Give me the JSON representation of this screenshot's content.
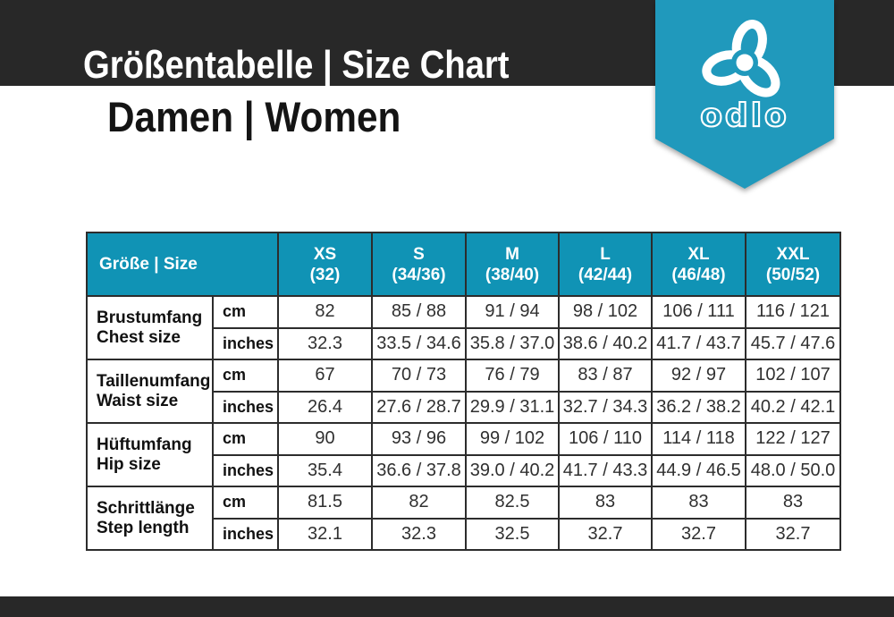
{
  "colors": {
    "band": "#282828",
    "teal": "#1093b5",
    "ribbon": "#2099bc"
  },
  "header": {
    "title": "Größentabelle | Size Chart",
    "subtitle": "Damen | Women"
  },
  "brand": {
    "wordmark": "odlo"
  },
  "table": {
    "corner_label": "Größe | Size",
    "units": [
      "cm",
      "inches"
    ],
    "sizes": [
      {
        "name": "XS",
        "range": "(32)"
      },
      {
        "name": "S",
        "range": "(34/36)"
      },
      {
        "name": "M",
        "range": "(38/40)"
      },
      {
        "name": "L",
        "range": "(42/44)"
      },
      {
        "name": "XL",
        "range": "(46/48)"
      },
      {
        "name": "XXL",
        "range": "(50/52)"
      }
    ],
    "rows": [
      {
        "label_de": "Brustumfang",
        "label_en": "Chest size",
        "values": {
          "cm": [
            "82",
            "85 / 88",
            "91 / 94",
            "98 / 102",
            "106 / 111",
            "116 / 121"
          ],
          "inches": [
            "32.3",
            "33.5 / 34.6",
            "35.8 / 37.0",
            "38.6 / 40.2",
            "41.7 / 43.7",
            "45.7 / 47.6"
          ]
        }
      },
      {
        "label_de": "Taillenumfang",
        "label_en": "Waist size",
        "values": {
          "cm": [
            "67",
            "70 / 73",
            "76 / 79",
            "83 / 87",
            "92 / 97",
            "102 / 107"
          ],
          "inches": [
            "26.4",
            "27.6 / 28.7",
            "29.9 / 31.1",
            "32.7 / 34.3",
            "36.2 / 38.2",
            "40.2 / 42.1"
          ]
        }
      },
      {
        "label_de": "Hüftumfang",
        "label_en": "Hip size",
        "values": {
          "cm": [
            "90",
            "93 / 96",
            "99 / 102",
            "106 / 110",
            "114 / 118",
            "122 / 127"
          ],
          "inches": [
            "35.4",
            "36.6 / 37.8",
            "39.0 / 40.2",
            "41.7 / 43.3",
            "44.9 / 46.5",
            "48.0 / 50.0"
          ]
        }
      },
      {
        "label_de": "Schrittlänge",
        "label_en": "Step length",
        "values": {
          "cm": [
            "81.5",
            "82",
            "82.5",
            "83",
            "83",
            "83"
          ],
          "inches": [
            "32.1",
            "32.3",
            "32.5",
            "32.7",
            "32.7",
            "32.7"
          ]
        }
      }
    ]
  }
}
